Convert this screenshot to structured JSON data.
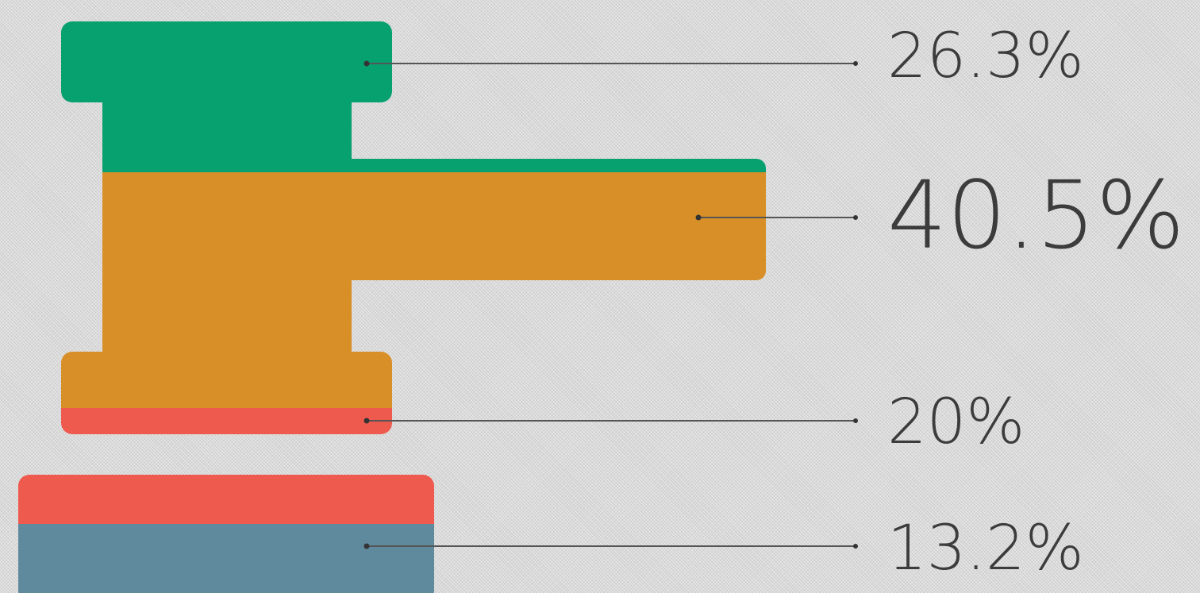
{
  "chart_data": {
    "type": "pictorial-stacked",
    "shape": "gavel",
    "series": [
      {
        "value": 26.3,
        "label": "26.3%",
        "color": "#07a06f"
      },
      {
        "value": 40.5,
        "label": "40.5%",
        "color": "#d88f27"
      },
      {
        "value": 20,
        "label": "20%",
        "color": "#ef5a4f"
      },
      {
        "value": 13.2,
        "label": "13.2%",
        "color": "#5f8a9e"
      }
    ],
    "unit": "%",
    "highlight_index": 1
  },
  "colors": {
    "background": "#d8d8d8",
    "leader_line": "#555555",
    "label_text": "#3c3c3c"
  }
}
